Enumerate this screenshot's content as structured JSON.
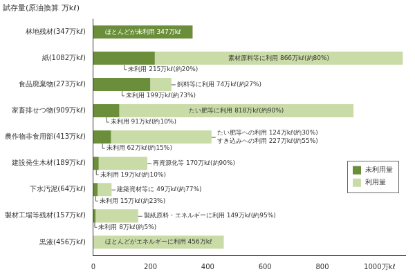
{
  "chart_data": {
    "type": "bar",
    "orientation": "horizontal",
    "stacked": true,
    "title": "賦存量(原油換算 万kℓ)",
    "categories": [
      "林地残材(347万kℓ)",
      "紙(1082万kℓ)",
      "食品廃棄物(273万kℓ)",
      "家畜排せつ物(909万kℓ)",
      "農作物非食用部(413万kℓ)",
      "建設発生木材(189万kℓ)",
      "下水汚泥(64万kℓ)",
      "製材工場等残材(157万kℓ)",
      "黒液(456万kℓ)"
    ],
    "series": [
      {
        "name": "未利用量",
        "color": "#6b8e3a",
        "values": [
          347,
          215,
          199,
          91,
          62,
          19,
          15,
          8,
          0
        ],
        "value_labels": [
          "ほとんどが未利用 347万kℓ",
          "未利用 215万kℓ(約20%)",
          "未利用 199万kℓ(約73%)",
          "未利用 91万kℓ(約10%)",
          "未利用 62万kℓ(約15%)",
          "未利用 19万kℓ(約10%)",
          "未利用 15万kℓ(約23%)",
          "未利用 8万kℓ(約5%)",
          null
        ]
      },
      {
        "name": "利用量",
        "color": "#c9dba6",
        "values": [
          0,
          866,
          74,
          818,
          351,
          170,
          49,
          149,
          456
        ],
        "value_labels": [
          null,
          "素材原料等に利用 866万kℓ(約80%)",
          "飼料等に利用 74万kℓ(約27%)",
          "たい肥等に利用 818万kℓ(約90%)",
          null,
          "再資源化等 170万kℓ(約90%)",
          "建築資材等に 49万kℓ(約77%)",
          "製紙原料・エネルギーに利用 149万kℓ(約95%)",
          "ほとんどがエネルギーに利用 456万kℓ"
        ]
      }
    ],
    "annotations": [
      {
        "category": "農作物非食用部(413万kℓ)",
        "series": "利用量",
        "text": [
          "たい肥等への利用 124万kℓ(約30%)",
          "すき込みへの利用 227万kℓ(約55%)"
        ]
      }
    ],
    "xlim": [
      0,
      1090
    ],
    "xticks": [
      0,
      200,
      400,
      600,
      800,
      {
        "value": 1000,
        "label": "1000万kℓ"
      }
    ],
    "grid": false,
    "legend": "lower right",
    "data_labels": true
  }
}
